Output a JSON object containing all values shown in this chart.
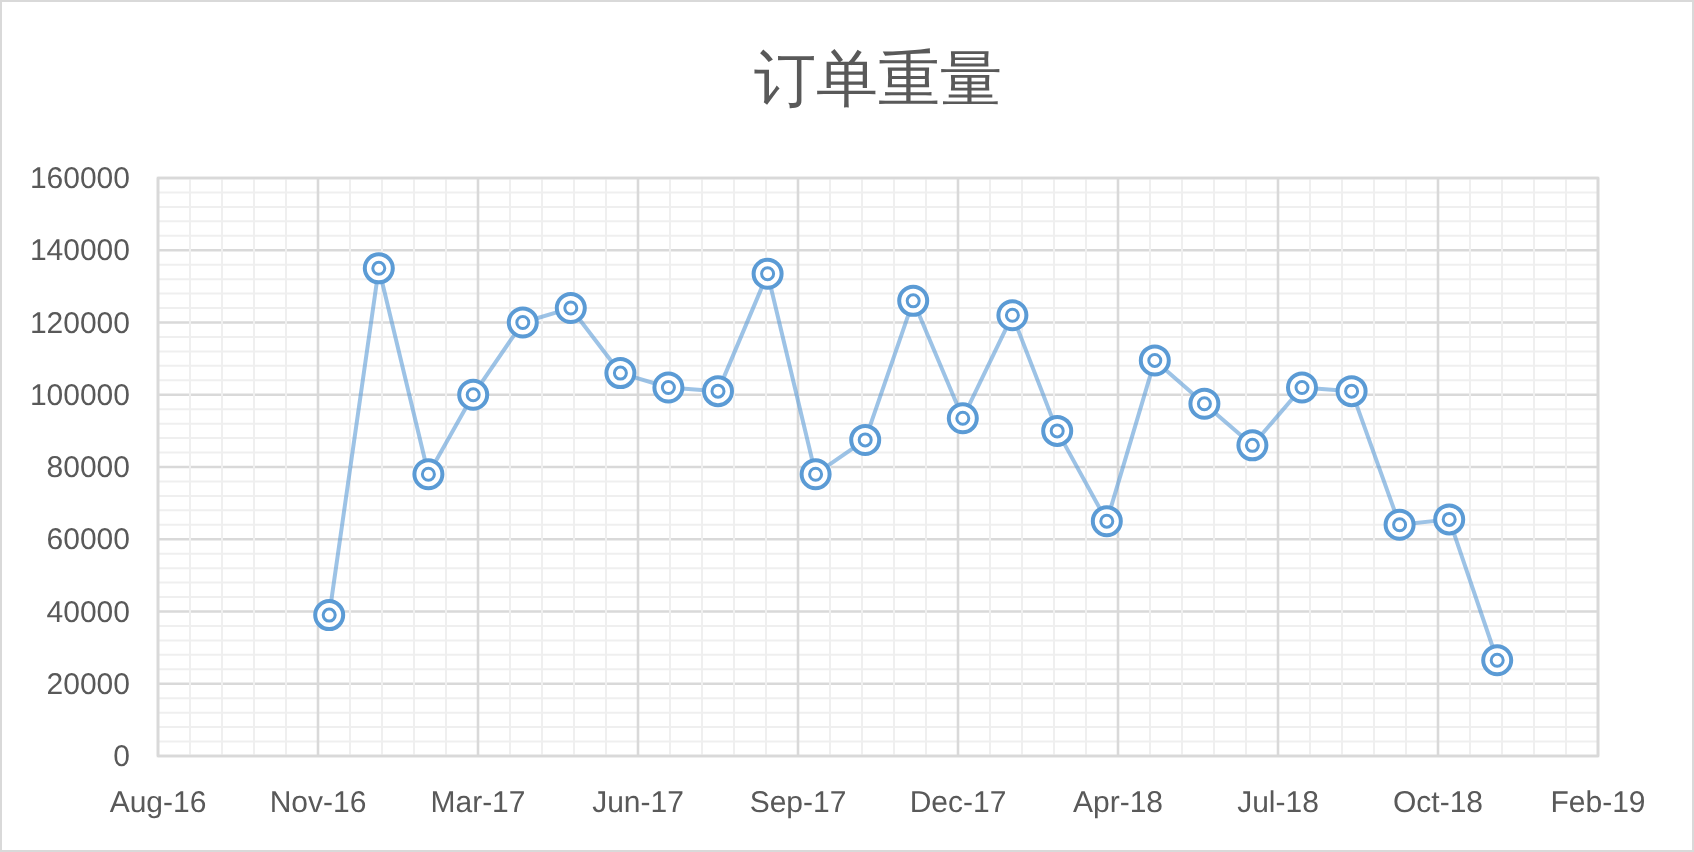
{
  "chart_data": {
    "type": "line",
    "title": "订单重量",
    "x": [
      "2016-11-30",
      "2016-12-31",
      "2017-01-31",
      "2017-02-28",
      "2017-03-31",
      "2017-04-30",
      "2017-05-31",
      "2017-06-30",
      "2017-07-31",
      "2017-08-31",
      "2017-09-30",
      "2017-10-31",
      "2017-11-30",
      "2017-12-31",
      "2018-01-31",
      "2018-02-28",
      "2018-03-31",
      "2018-04-30",
      "2018-05-31",
      "2018-06-30",
      "2018-07-31",
      "2018-08-31",
      "2018-09-30",
      "2018-10-31",
      "2018-11-30"
    ],
    "values": [
      39000,
      135000,
      78000,
      100000,
      120000,
      124000,
      106000,
      102000,
      101000,
      133500,
      78000,
      87500,
      126000,
      93500,
      122000,
      90000,
      65000,
      109500,
      97500,
      86000,
      102000,
      101000,
      64000,
      65500,
      26500
    ],
    "color": "#5b9bd5",
    "marker": "circle",
    "grid": true,
    "xlim": [
      "2016-08-15",
      "2019-02-01"
    ],
    "xticks": [
      {
        "value": "2016-08-15",
        "label": "Aug-16"
      },
      {
        "value": "2016-11-23",
        "label": "Nov-16"
      },
      {
        "value": "2017-03-03",
        "label": "Mar-17"
      },
      {
        "value": "2017-06-11",
        "label": "Jun-17"
      },
      {
        "value": "2017-09-19",
        "label": "Sep-17"
      },
      {
        "value": "2017-12-28",
        "label": "Dec-17"
      },
      {
        "value": "2018-04-07",
        "label": "Apr-18"
      },
      {
        "value": "2018-07-16",
        "label": "Jul-18"
      },
      {
        "value": "2018-10-24",
        "label": "Oct-18"
      },
      {
        "value": "2019-02-01",
        "label": "Feb-19"
      }
    ],
    "ylim": [
      0,
      160000
    ],
    "yticks": [
      0,
      20000,
      40000,
      60000,
      80000,
      100000,
      120000,
      140000,
      160000
    ]
  }
}
